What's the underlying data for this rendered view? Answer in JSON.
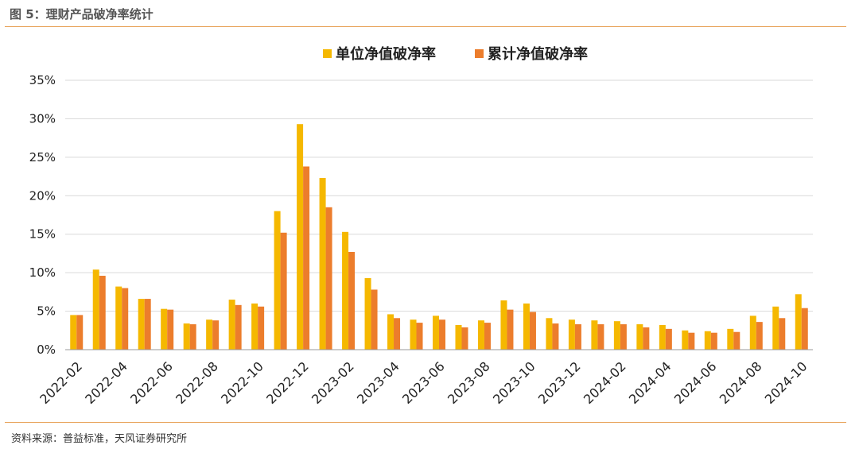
{
  "figure_title": "图 5：理财产品破净率统计",
  "source": "资料来源：普益标准，天风证券研究所",
  "colors": {
    "series1": "#f5b800",
    "series2": "#ec7d2c",
    "grid": "#d9d9d9",
    "axis": "#999999",
    "rule": "#e8a35a"
  },
  "chart_data": {
    "type": "bar",
    "title": "",
    "xlabel": "",
    "ylabel": "",
    "ylim": [
      0,
      35
    ],
    "y_unit": "%",
    "y_ticks": [
      "0%",
      "5%",
      "10%",
      "15%",
      "20%",
      "25%",
      "30%",
      "35%"
    ],
    "grid": true,
    "legend": "top-center",
    "categories": [
      "2022-02",
      "2022-03",
      "2022-04",
      "2022-05",
      "2022-06",
      "2022-07",
      "2022-08",
      "2022-09",
      "2022-10",
      "2022-11",
      "2022-12",
      "2023-01",
      "2023-02",
      "2023-03",
      "2023-04",
      "2023-05",
      "2023-06",
      "2023-07",
      "2023-08",
      "2023-09",
      "2023-10",
      "2023-11",
      "2023-12",
      "2024-01",
      "2024-02",
      "2024-03",
      "2024-04",
      "2024-05",
      "2024-06",
      "2024-07",
      "2024-08",
      "2024-09",
      "2024-10"
    ],
    "tick_labels": [
      "2022-02",
      "2022-04",
      "2022-06",
      "2022-08",
      "2022-10",
      "2022-12",
      "2023-02",
      "2023-04",
      "2023-06",
      "2023-08",
      "2023-10",
      "2023-12",
      "2024-02",
      "2024-04",
      "2024-06",
      "2024-08",
      "2024-10"
    ],
    "series": [
      {
        "name": "单位净值破净率",
        "values": [
          4.5,
          10.4,
          8.2,
          6.6,
          5.3,
          3.4,
          3.9,
          6.5,
          6.0,
          18.0,
          29.3,
          22.3,
          15.3,
          9.3,
          4.6,
          3.9,
          4.4,
          3.2,
          3.8,
          6.4,
          6.0,
          4.1,
          3.9,
          3.8,
          3.7,
          3.3,
          3.2,
          2.5,
          2.4,
          2.7,
          4.4,
          5.6,
          7.2
        ]
      },
      {
        "name": "累计净值破净率",
        "values": [
          4.5,
          9.6,
          8.0,
          6.6,
          5.2,
          3.3,
          3.8,
          5.8,
          5.6,
          15.2,
          23.8,
          18.5,
          12.7,
          7.8,
          4.1,
          3.5,
          3.9,
          2.9,
          3.5,
          5.2,
          4.9,
          3.4,
          3.3,
          3.3,
          3.3,
          2.9,
          2.7,
          2.2,
          2.2,
          2.3,
          3.6,
          4.1,
          5.4
        ]
      }
    ]
  }
}
